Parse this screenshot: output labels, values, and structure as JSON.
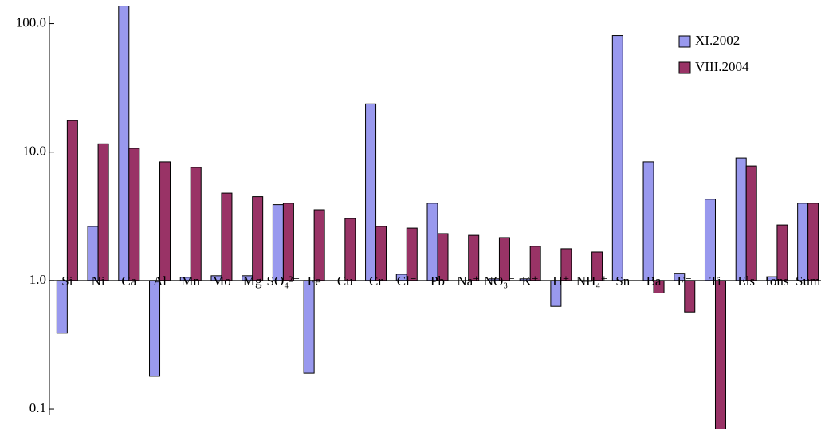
{
  "chart_data": {
    "type": "bar",
    "categories": [
      "Si",
      "Ni",
      "Ca",
      "Al",
      "Mn",
      "Mo",
      "Mg",
      "SO₄²⁻",
      "Fe",
      "Cu",
      "Cr",
      "Cl⁻",
      "Pb",
      "Na⁺",
      "NO₃⁻",
      "K⁺",
      "H⁺",
      "NH₄⁺",
      "Sn",
      "Ba",
      "F⁻",
      "Ti",
      "Els",
      "Ions",
      "Sum"
    ],
    "series": [
      {
        "name": "XI.2002",
        "color": "#9999ee",
        "values": [
          0.39,
          2.64,
          137,
          0.18,
          1.06,
          1.09,
          1.09,
          3.9,
          0.19,
          null,
          23.7,
          1.12,
          4.0,
          null,
          1.03,
          1.03,
          0.63,
          0.99,
          80.7,
          8.4,
          1.14,
          4.3,
          9.0,
          1.07,
          4.0
        ]
      },
      {
        "name": "VIII.2004",
        "color": "#993366",
        "values": [
          17.6,
          11.6,
          10.7,
          8.4,
          7.6,
          4.8,
          4.5,
          4.0,
          3.56,
          3.04,
          2.64,
          2.56,
          2.32,
          2.25,
          2.16,
          1.85,
          1.77,
          1.67,
          null,
          0.8,
          0.57,
          0.06,
          7.8,
          2.71,
          4.0
        ]
      }
    ],
    "log_scale": true,
    "ylim": [
      0.07,
      140
    ],
    "yticks": [
      {
        "value": 0.1,
        "label": "0.1"
      },
      {
        "value": 1,
        "label": "1.0"
      },
      {
        "value": 10,
        "label": "10.0"
      },
      {
        "value": 100,
        "label": "100.0"
      }
    ],
    "legend": "top-right"
  }
}
